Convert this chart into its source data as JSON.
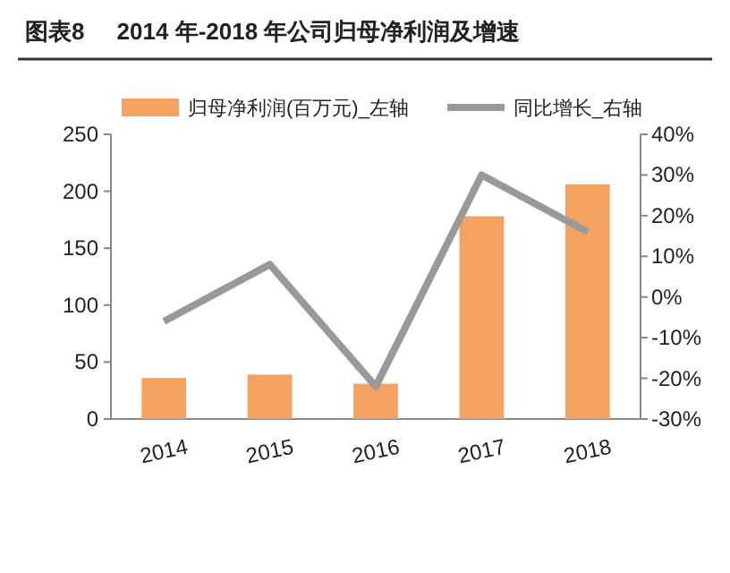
{
  "chart_data": {
    "type": "bar",
    "title": "图表8     2014 年-2018 年公司归母净利润及增速",
    "categories": [
      "2014",
      "2015",
      "2016",
      "2017",
      "2018"
    ],
    "series": [
      {
        "name": "归母净利润(百万元)_左轴",
        "color": "#f4a261",
        "values": [
          36,
          39,
          31,
          178,
          206
        ]
      },
      {
        "name": "同比增长_右轴",
        "type": "line",
        "axis": "y2",
        "color": "#999999",
        "values": [
          -6,
          8,
          -22,
          30,
          16
        ]
      }
    ],
    "ylim": [
      0,
      250
    ],
    "yticks": [
      0,
      50,
      100,
      150,
      200,
      250
    ],
    "y2lim": [
      -30,
      40
    ],
    "y2ticks": [
      {
        "value": -30,
        "label": "-30%"
      },
      {
        "value": -20,
        "label": "-20%"
      },
      {
        "value": -10,
        "label": "-10%"
      },
      {
        "value": 0,
        "label": "0%"
      },
      {
        "value": 10,
        "label": "10%"
      },
      {
        "value": 20,
        "label": "20%"
      },
      {
        "value": 30,
        "label": "30%"
      },
      {
        "value": 40,
        "label": "40%"
      }
    ],
    "legend": "top",
    "grid": false,
    "marker": "none",
    "line_style": "solid"
  }
}
